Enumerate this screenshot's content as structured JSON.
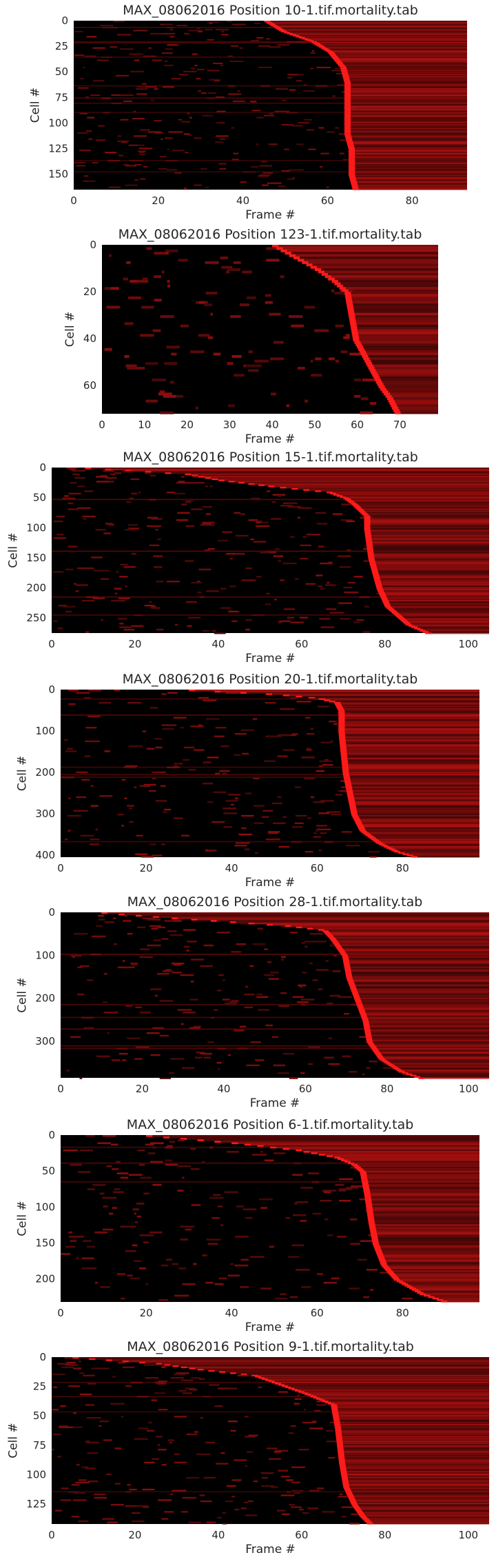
{
  "colors": {
    "background": "#000000",
    "dead": "#ff1a1a",
    "text": "#262626"
  },
  "chart_data": [
    {
      "type": "heatmap",
      "title": "MAX_08062016 Position 10-1.tif.mortality.tab",
      "xlabel": "Frame #",
      "ylabel": "Cell #",
      "xlim": [
        0,
        93
      ],
      "ylim": [
        0,
        165
      ],
      "xticks": [
        0,
        20,
        40,
        60,
        80
      ],
      "yticks": [
        0,
        25,
        50,
        75,
        100,
        125,
        150
      ],
      "death_curve": [
        [
          0,
          45
        ],
        [
          10,
          49
        ],
        [
          20,
          56
        ],
        [
          30,
          60
        ],
        [
          40,
          62
        ],
        [
          45,
          63
        ],
        [
          60,
          64
        ],
        [
          70,
          64
        ],
        [
          100,
          64
        ],
        [
          110,
          64
        ],
        [
          125,
          65
        ],
        [
          150,
          65
        ],
        [
          165,
          66
        ]
      ]
    },
    {
      "type": "heatmap",
      "title": "MAX_08062016 Position 123-1.tif.mortality.tab",
      "xlabel": "Frame #",
      "ylabel": "Cell #",
      "xlim": [
        0,
        79
      ],
      "ylim": [
        0,
        72
      ],
      "xticks": [
        0,
        10,
        20,
        30,
        40,
        50,
        60,
        70
      ],
      "yticks": [
        0,
        20,
        40,
        60
      ],
      "death_curve": [
        [
          0,
          40
        ],
        [
          5,
          45
        ],
        [
          10,
          50
        ],
        [
          15,
          54
        ],
        [
          20,
          57
        ],
        [
          30,
          58
        ],
        [
          40,
          59
        ],
        [
          50,
          62
        ],
        [
          60,
          65
        ],
        [
          65,
          67
        ],
        [
          72,
          69
        ]
      ]
    },
    {
      "type": "heatmap",
      "title": "MAX_08062016 Position 15-1.tif.mortality.tab",
      "xlabel": "Frame #",
      "ylabel": "Cell #",
      "xlim": [
        0,
        105
      ],
      "ylim": [
        0,
        275
      ],
      "xticks": [
        0,
        20,
        40,
        60,
        80,
        100
      ],
      "yticks": [
        0,
        50,
        100,
        150,
        200,
        250
      ],
      "death_curve": [
        [
          0,
          8
        ],
        [
          10,
          32
        ],
        [
          20,
          40
        ],
        [
          30,
          52
        ],
        [
          40,
          66
        ],
        [
          50,
          70
        ],
        [
          60,
          72
        ],
        [
          80,
          75
        ],
        [
          100,
          75
        ],
        [
          150,
          76
        ],
        [
          200,
          78
        ],
        [
          230,
          80
        ],
        [
          260,
          85
        ],
        [
          275,
          90
        ]
      ]
    },
    {
      "type": "heatmap",
      "title": "MAX_08062016 Position 20-1.tif.mortality.tab",
      "xlabel": "Frame #",
      "ylabel": "Cell #",
      "xlim": [
        0,
        98
      ],
      "ylim": [
        0,
        405
      ],
      "xticks": [
        0,
        20,
        40,
        60,
        80
      ],
      "yticks": [
        0,
        100,
        200,
        300,
        400
      ],
      "death_curve": [
        [
          0,
          30
        ],
        [
          10,
          50
        ],
        [
          20,
          60
        ],
        [
          30,
          64
        ],
        [
          50,
          65
        ],
        [
          100,
          65
        ],
        [
          200,
          66
        ],
        [
          300,
          68
        ],
        [
          340,
          70
        ],
        [
          370,
          74
        ],
        [
          390,
          78
        ],
        [
          405,
          83
        ]
      ]
    },
    {
      "type": "heatmap",
      "title": "MAX_08062016 Position 28-1.tif.mortality.tab",
      "xlabel": "Frame #",
      "ylabel": "Cell #",
      "xlim": [
        0,
        105
      ],
      "ylim": [
        0,
        385
      ],
      "xticks": [
        0,
        20,
        40,
        60,
        80,
        100
      ],
      "yticks": [
        0,
        100,
        200,
        300
      ],
      "death_curve": [
        [
          0,
          10
        ],
        [
          10,
          24
        ],
        [
          20,
          40
        ],
        [
          30,
          55
        ],
        [
          40,
          64
        ],
        [
          60,
          66
        ],
        [
          100,
          69
        ],
        [
          150,
          70
        ],
        [
          200,
          72
        ],
        [
          250,
          74
        ],
        [
          300,
          75
        ],
        [
          340,
          78
        ],
        [
          370,
          83
        ],
        [
          385,
          88
        ]
      ]
    },
    {
      "type": "heatmap",
      "title": "MAX_08062016 Position 6-1.tif.mortality.tab",
      "xlabel": "Frame #",
      "ylabel": "Cell #",
      "xlim": [
        0,
        98
      ],
      "ylim": [
        0,
        232
      ],
      "xticks": [
        0,
        20,
        40,
        60,
        80
      ],
      "yticks": [
        0,
        50,
        100,
        150,
        200
      ],
      "death_curve": [
        [
          0,
          20
        ],
        [
          10,
          40
        ],
        [
          20,
          55
        ],
        [
          30,
          64
        ],
        [
          40,
          68
        ],
        [
          50,
          70
        ],
        [
          80,
          71
        ],
        [
          120,
          72
        ],
        [
          150,
          73
        ],
        [
          180,
          75
        ],
        [
          200,
          78
        ],
        [
          220,
          84
        ],
        [
          232,
          90
        ]
      ]
    },
    {
      "type": "heatmap",
      "title": "MAX_08062016 Position 9-1.tif.mortality.tab",
      "xlabel": "Frame #",
      "ylabel": "Cell #",
      "xlim": [
        0,
        105
      ],
      "ylim": [
        0,
        142
      ],
      "xticks": [
        0,
        20,
        40,
        60,
        80,
        100
      ],
      "yticks": [
        0,
        25,
        50,
        75,
        100,
        125
      ],
      "death_curve": [
        [
          0,
          5
        ],
        [
          5,
          25
        ],
        [
          10,
          35
        ],
        [
          15,
          48
        ],
        [
          20,
          52
        ],
        [
          30,
          60
        ],
        [
          40,
          67
        ],
        [
          60,
          68
        ],
        [
          90,
          69
        ],
        [
          110,
          70
        ],
        [
          125,
          72
        ],
        [
          135,
          74
        ],
        [
          142,
          76
        ]
      ]
    }
  ]
}
